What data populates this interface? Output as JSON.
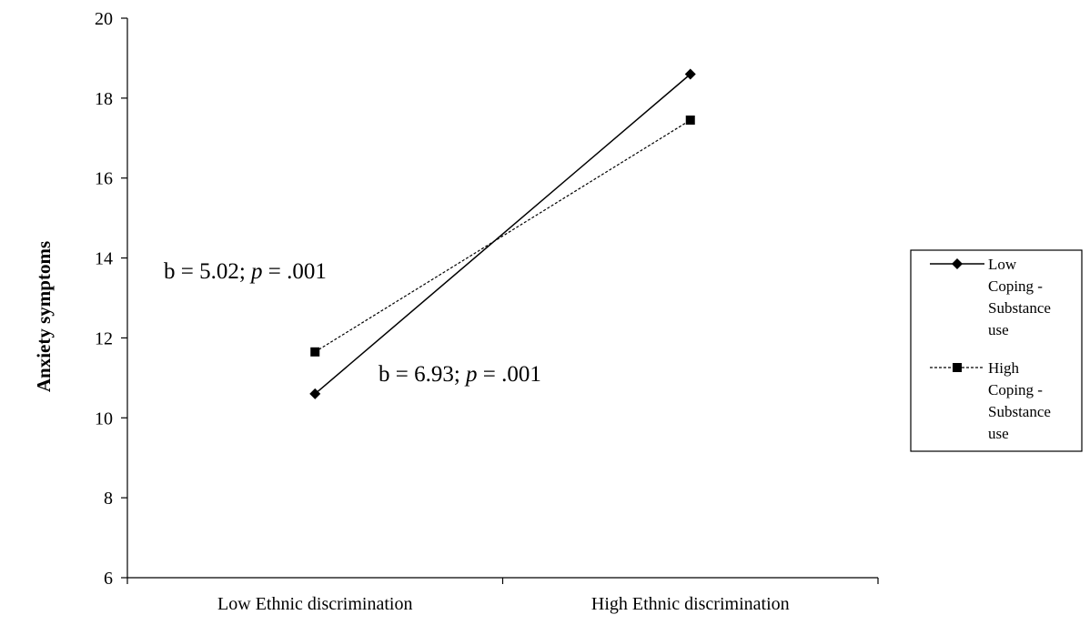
{
  "chart_data": {
    "type": "line",
    "title": "",
    "xlabel": "",
    "ylabel": "Anxiety symptoms",
    "categories": [
      "Low Ethnic discrimination",
      "High Ethnic discrimination"
    ],
    "ylim": [
      6,
      20
    ],
    "yticks": [
      "6",
      "8",
      "10",
      "12",
      "14",
      "16",
      "18",
      "20"
    ],
    "grid": false,
    "legend_position": "right",
    "series": [
      {
        "name": "Low Coping - Substance use",
        "legend_lines": [
          "Low",
          "Coping -",
          "Substance",
          "use"
        ],
        "values": [
          10.6,
          18.6
        ],
        "line_style": "solid",
        "marker": "diamond",
        "color": "#000000"
      },
      {
        "name": "High Coping - Substance use",
        "legend_lines": [
          "High",
          "Coping -",
          "Substance",
          "use"
        ],
        "values": [
          11.65,
          17.45
        ],
        "line_style": "dashed",
        "marker": "square",
        "color": "#000000"
      }
    ],
    "annotations": [
      {
        "b_text": "b = 5.02; ",
        "p_symbol": "p",
        "p_text": " = .001"
      },
      {
        "b_text": "b = 6.93; ",
        "p_symbol": "p",
        "p_text": " = .001"
      }
    ]
  }
}
